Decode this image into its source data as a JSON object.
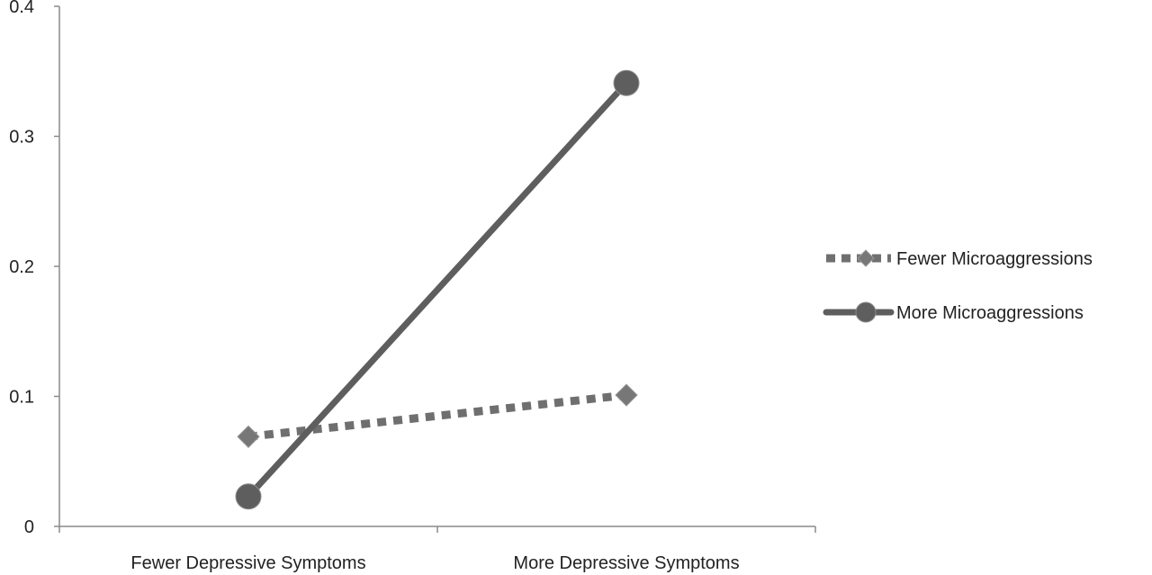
{
  "chart_data": {
    "type": "line",
    "title": "",
    "xlabel": "",
    "ylabel": "",
    "categories": [
      "Fewer Depressive Symptoms",
      "More Depressive Symptoms"
    ],
    "ylim": [
      0,
      0.4
    ],
    "yticks": [
      "0",
      "0.1",
      "0.2",
      "0.3",
      "0.4"
    ],
    "grid": false,
    "legend_position": "right",
    "series": [
      {
        "name": "Fewer Microaggressions",
        "values": [
          0.069,
          0.101
        ],
        "line_style": "dashed",
        "marker": "diamond",
        "color": "#6f6f6f"
      },
      {
        "name": "More Microaggressions",
        "values": [
          0.023,
          0.341
        ],
        "line_style": "solid",
        "marker": "circle",
        "color": "#5e5e5e"
      }
    ]
  }
}
